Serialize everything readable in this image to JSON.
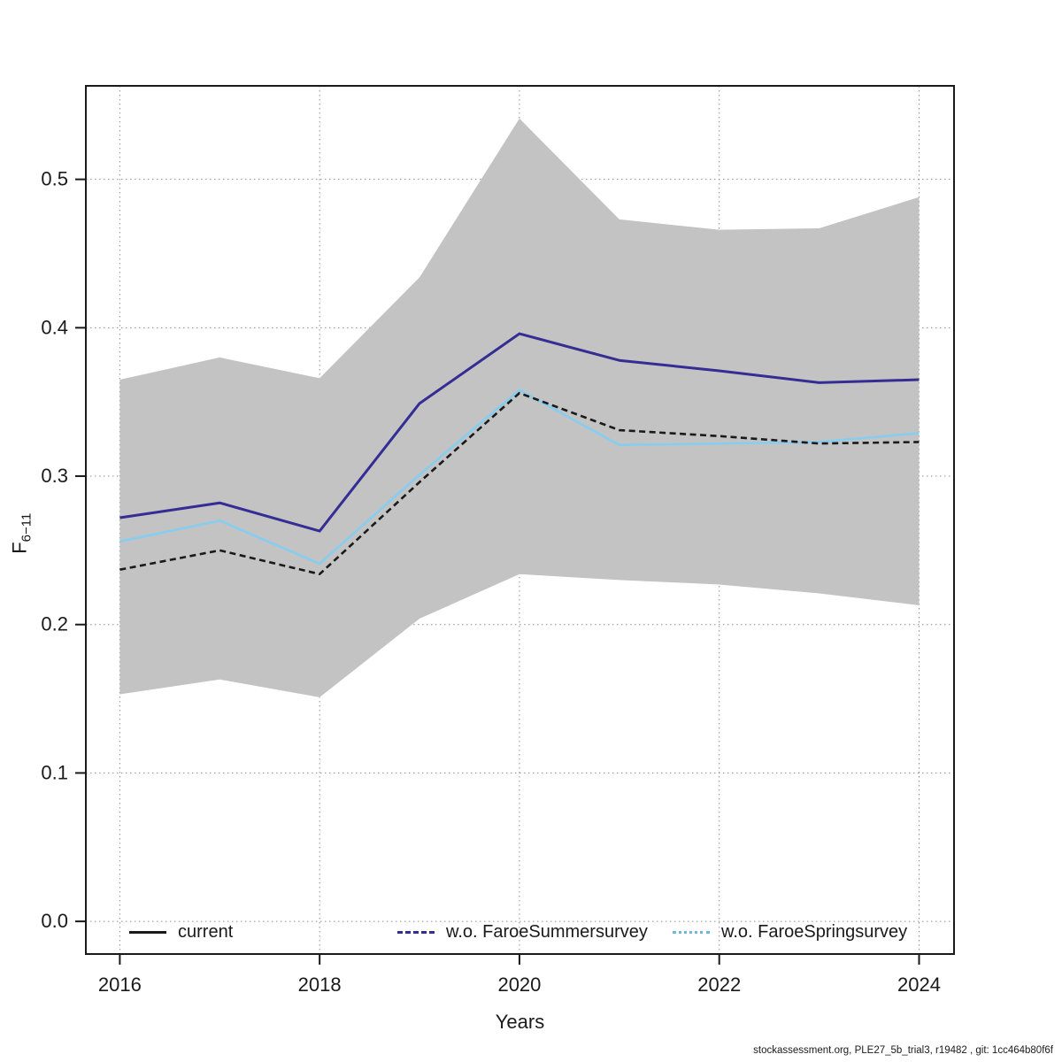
{
  "figure": {
    "footer": "stockassessment.org, PLE27_5b_trial3, r19482 , git: 1cc464b80f6f"
  },
  "chart_data": {
    "type": "line",
    "title": "",
    "xlabel": "Years",
    "ylabel": {
      "main": "F",
      "sub": "6−11"
    },
    "x": [
      2016,
      2017,
      2018,
      2019,
      2020,
      2021,
      2022,
      2023,
      2024
    ],
    "series": [
      {
        "name": "current",
        "color": "#1a1a1a",
        "line_style": "dashed",
        "width": 2.6,
        "values": [
          0.237,
          0.25,
          0.234,
          0.296,
          0.356,
          0.331,
          0.327,
          0.322,
          0.323
        ]
      },
      {
        "name": "w.o. FaroeSummersurvey",
        "color": "#342d93",
        "line_style": "solid",
        "width": 3,
        "values": [
          0.272,
          0.282,
          0.263,
          0.349,
          0.396,
          0.378,
          0.371,
          0.363,
          0.365
        ]
      },
      {
        "name": "w.o. FaroeSpringsurvey",
        "color": "#86cdf0",
        "line_style": "solid",
        "width": 2.6,
        "values": [
          0.256,
          0.27,
          0.241,
          0.301,
          0.358,
          0.321,
          0.322,
          0.323,
          0.329
        ]
      }
    ],
    "band": {
      "belongs_to": "current",
      "color": "#c3c3c3",
      "lower": [
        0.153,
        0.163,
        0.151,
        0.204,
        0.234,
        0.23,
        0.227,
        0.221,
        0.213
      ],
      "upper": [
        0.365,
        0.38,
        0.366,
        0.434,
        0.541,
        0.473,
        0.466,
        0.467,
        0.488
      ]
    },
    "xticks": [
      "2016",
      "2018",
      "2020",
      "2022",
      "2024"
    ],
    "xtick_values": [
      2016,
      2018,
      2020,
      2022,
      2024
    ],
    "yticks": [
      "0.0",
      "0.1",
      "0.2",
      "0.3",
      "0.4",
      "0.5"
    ],
    "ytick_values": [
      0.0,
      0.1,
      0.2,
      0.3,
      0.4,
      0.5
    ],
    "xlim": [
      2015.66,
      2024.35
    ],
    "ylim": [
      -0.022,
      0.563
    ],
    "grid": "dotted",
    "legend_position": "bottom-inside",
    "colors": {
      "band": "#c3c3c3",
      "grid": "#8f8f8f",
      "axis": "#1a1a1a",
      "background": "#ffffff"
    }
  }
}
